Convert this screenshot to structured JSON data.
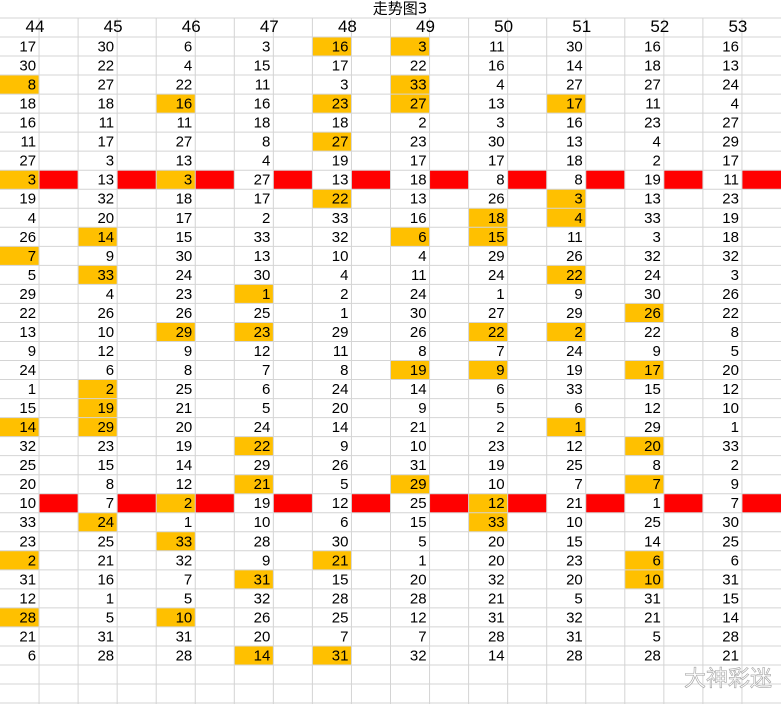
{
  "title": "走势图3",
  "column_headers": [
    "44",
    "45",
    "46",
    "47",
    "48",
    "49",
    "50",
    "51",
    "52",
    "53"
  ],
  "highlight_color": "#ffc000",
  "separator_color": "#ff0000",
  "watermark": "大神彩迷",
  "rows": [
    {
      "values": [
        17,
        30,
        6,
        3,
        16,
        3,
        11,
        30,
        16,
        16
      ],
      "highlighted": [
        4,
        5
      ]
    },
    {
      "values": [
        30,
        22,
        4,
        15,
        17,
        22,
        16,
        14,
        18,
        13
      ],
      "highlighted": []
    },
    {
      "values": [
        8,
        27,
        22,
        11,
        3,
        33,
        4,
        27,
        27,
        24
      ],
      "highlighted": [
        0,
        5
      ]
    },
    {
      "values": [
        18,
        18,
        16,
        16,
        23,
        27,
        13,
        17,
        11,
        4
      ],
      "highlighted": [
        2,
        4,
        5,
        7
      ]
    },
    {
      "values": [
        16,
        11,
        11,
        18,
        18,
        2,
        3,
        16,
        23,
        27
      ],
      "highlighted": []
    },
    {
      "values": [
        11,
        17,
        27,
        8,
        27,
        23,
        30,
        13,
        4,
        29
      ],
      "highlighted": [
        4
      ]
    },
    {
      "values": [
        27,
        3,
        13,
        4,
        19,
        17,
        17,
        18,
        2,
        17
      ],
      "highlighted": []
    },
    {
      "values": [
        3,
        13,
        3,
        27,
        13,
        18,
        8,
        8,
        19,
        11
      ],
      "highlighted": [
        0,
        2
      ],
      "separator": true
    },
    {
      "values": [
        19,
        32,
        18,
        17,
        22,
        13,
        26,
        3,
        13,
        23
      ],
      "highlighted": [
        4,
        7
      ]
    },
    {
      "values": [
        4,
        20,
        17,
        2,
        33,
        16,
        18,
        4,
        33,
        19
      ],
      "highlighted": [
        6,
        7
      ]
    },
    {
      "values": [
        26,
        14,
        15,
        33,
        32,
        6,
        15,
        11,
        3,
        18
      ],
      "highlighted": [
        1,
        5,
        6
      ]
    },
    {
      "values": [
        7,
        9,
        30,
        13,
        10,
        4,
        29,
        26,
        32,
        32
      ],
      "highlighted": [
        0
      ]
    },
    {
      "values": [
        5,
        33,
        24,
        30,
        4,
        11,
        24,
        22,
        24,
        3
      ],
      "highlighted": [
        1,
        7
      ]
    },
    {
      "values": [
        29,
        4,
        23,
        1,
        2,
        24,
        1,
        9,
        30,
        26
      ],
      "highlighted": [
        3
      ]
    },
    {
      "values": [
        22,
        26,
        26,
        25,
        1,
        30,
        27,
        29,
        26,
        22
      ],
      "highlighted": [
        8
      ]
    },
    {
      "values": [
        13,
        10,
        29,
        23,
        29,
        26,
        22,
        2,
        22,
        8
      ],
      "highlighted": [
        2,
        3,
        6,
        7
      ]
    },
    {
      "values": [
        9,
        12,
        9,
        12,
        11,
        8,
        7,
        24,
        9,
        5
      ],
      "highlighted": []
    },
    {
      "values": [
        24,
        6,
        8,
        7,
        8,
        19,
        9,
        19,
        17,
        20
      ],
      "highlighted": [
        5,
        6,
        8
      ]
    },
    {
      "values": [
        1,
        2,
        25,
        6,
        24,
        14,
        6,
        33,
        15,
        12
      ],
      "highlighted": [
        1
      ]
    },
    {
      "values": [
        15,
        19,
        21,
        5,
        20,
        9,
        5,
        6,
        12,
        10
      ],
      "highlighted": [
        1
      ]
    },
    {
      "values": [
        14,
        29,
        20,
        24,
        14,
        21,
        2,
        1,
        29,
        1
      ],
      "highlighted": [
        0,
        1,
        7
      ]
    },
    {
      "values": [
        32,
        23,
        19,
        22,
        9,
        10,
        23,
        12,
        20,
        33
      ],
      "highlighted": [
        3,
        8
      ]
    },
    {
      "values": [
        25,
        15,
        14,
        29,
        26,
        31,
        19,
        25,
        8,
        2
      ],
      "highlighted": []
    },
    {
      "values": [
        20,
        8,
        12,
        21,
        5,
        29,
        10,
        7,
        7,
        9
      ],
      "highlighted": [
        3,
        5,
        8
      ]
    },
    {
      "values": [
        10,
        7,
        2,
        19,
        12,
        25,
        12,
        21,
        1,
        7
      ],
      "highlighted": [
        2,
        6
      ],
      "separator": true
    },
    {
      "values": [
        33,
        24,
        1,
        10,
        6,
        15,
        33,
        10,
        25,
        30
      ],
      "highlighted": [
        1,
        6
      ]
    },
    {
      "values": [
        23,
        25,
        33,
        28,
        30,
        5,
        20,
        15,
        14,
        25
      ],
      "highlighted": [
        2
      ]
    },
    {
      "values": [
        2,
        21,
        32,
        9,
        21,
        1,
        20,
        23,
        6,
        6
      ],
      "highlighted": [
        0,
        4,
        8
      ]
    },
    {
      "values": [
        31,
        16,
        7,
        31,
        15,
        20,
        32,
        20,
        10,
        31
      ],
      "highlighted": [
        3,
        8
      ]
    },
    {
      "values": [
        12,
        1,
        5,
        32,
        28,
        28,
        21,
        5,
        31,
        15
      ],
      "highlighted": []
    },
    {
      "values": [
        28,
        5,
        10,
        26,
        25,
        12,
        31,
        32,
        21,
        14
      ],
      "highlighted": [
        0,
        2
      ]
    },
    {
      "values": [
        21,
        31,
        31,
        20,
        7,
        7,
        28,
        31,
        5,
        28
      ],
      "highlighted": []
    },
    {
      "values": [
        6,
        28,
        28,
        14,
        31,
        32,
        14,
        28,
        28,
        21
      ],
      "highlighted": [
        3,
        4
      ]
    }
  ]
}
